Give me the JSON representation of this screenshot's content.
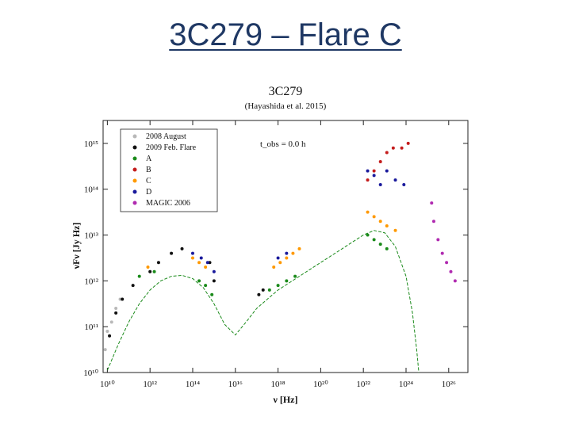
{
  "slide": {
    "title": "3C279 – Flare C"
  },
  "chart_data": {
    "type": "scatter",
    "title": "3C279",
    "subtitle": "(Hayashida et al. 2015)",
    "xlabel": "ν [Hz]",
    "ylabel": "νFν [Jy Hz]",
    "xlim": [
      9.8,
      26.9
    ],
    "ylim": [
      10,
      15.5
    ],
    "annotation": "t_obs = 0.0 h",
    "x_ticks": [
      {
        "value": 10,
        "label": "10¹⁰"
      },
      {
        "value": 12,
        "label": "10¹²"
      },
      {
        "value": 14,
        "label": "10¹⁴"
      },
      {
        "value": 16,
        "label": "10¹⁶"
      },
      {
        "value": 18,
        "label": "10¹⁸"
      },
      {
        "value": 20,
        "label": "10²⁰"
      },
      {
        "value": 22,
        "label": "10²²"
      },
      {
        "value": 24,
        "label": "10²⁴"
      },
      {
        "value": 26,
        "label": "10²⁶"
      }
    ],
    "y_ticks": [
      {
        "value": 10,
        "label": "10¹⁰"
      },
      {
        "value": 11,
        "label": "10¹¹"
      },
      {
        "value": 12,
        "label": "10¹²"
      },
      {
        "value": 13,
        "label": "10¹³"
      },
      {
        "value": 14,
        "label": "10¹⁴"
      },
      {
        "value": 15,
        "label": "10¹⁵"
      }
    ],
    "series": [
      {
        "name": "2008 August",
        "color": "#b8b8b8",
        "marker": "dot",
        "points": [
          [
            9.9,
            10.5
          ],
          [
            10.0,
            10.9
          ],
          [
            10.2,
            11.1
          ],
          [
            10.4,
            11.4
          ],
          [
            10.6,
            11.6
          ]
        ]
      },
      {
        "name": "2009 Feb. Flare",
        "color": "#111111",
        "marker": "dot",
        "points": [
          [
            10.1,
            10.8
          ],
          [
            10.4,
            11.3
          ],
          [
            10.7,
            11.6
          ],
          [
            11.2,
            11.9
          ],
          [
            12.0,
            12.2
          ],
          [
            12.4,
            12.4
          ],
          [
            13.0,
            12.6
          ],
          [
            13.5,
            12.7
          ],
          [
            14.8,
            12.4
          ],
          [
            15.0,
            12.0
          ],
          [
            17.1,
            11.7
          ],
          [
            17.3,
            11.8
          ]
        ]
      },
      {
        "name": "A",
        "color": "#1a8a1a",
        "marker": "dot",
        "points": [
          [
            11.5,
            12.1
          ],
          [
            12.2,
            12.2
          ],
          [
            14.3,
            12.0
          ],
          [
            14.6,
            11.9
          ],
          [
            14.9,
            11.7
          ],
          [
            17.6,
            11.8
          ],
          [
            18.0,
            11.9
          ],
          [
            18.4,
            12.0
          ],
          [
            18.8,
            12.1
          ],
          [
            22.2,
            13.0
          ],
          [
            22.5,
            12.9
          ],
          [
            22.8,
            12.8
          ],
          [
            23.1,
            12.7
          ]
        ]
      },
      {
        "name": "B",
        "color": "#c41c1c",
        "marker": "dot",
        "points": [
          [
            22.2,
            14.2
          ],
          [
            22.5,
            14.4
          ],
          [
            22.8,
            14.6
          ],
          [
            23.1,
            14.8
          ],
          [
            23.4,
            14.9
          ],
          [
            23.8,
            14.9
          ],
          [
            24.1,
            15.0
          ]
        ]
      },
      {
        "name": "C",
        "color": "#ff9900",
        "marker": "dot",
        "points": [
          [
            11.9,
            12.3
          ],
          [
            14.0,
            12.5
          ],
          [
            14.3,
            12.4
          ],
          [
            14.6,
            12.3
          ],
          [
            17.8,
            12.3
          ],
          [
            18.1,
            12.4
          ],
          [
            18.4,
            12.5
          ],
          [
            18.7,
            12.6
          ],
          [
            19.0,
            12.7
          ],
          [
            22.2,
            13.5
          ],
          [
            22.5,
            13.4
          ],
          [
            22.8,
            13.3
          ],
          [
            23.1,
            13.2
          ],
          [
            23.5,
            13.1
          ]
        ]
      },
      {
        "name": "D",
        "color": "#1a1a9c",
        "marker": "dot",
        "points": [
          [
            14.0,
            12.6
          ],
          [
            14.4,
            12.5
          ],
          [
            14.7,
            12.4
          ],
          [
            15.0,
            12.2
          ],
          [
            18.0,
            12.5
          ],
          [
            18.4,
            12.6
          ],
          [
            22.2,
            14.4
          ],
          [
            22.5,
            14.3
          ],
          [
            22.8,
            14.1
          ],
          [
            23.1,
            14.4
          ],
          [
            23.5,
            14.2
          ],
          [
            23.9,
            14.1
          ]
        ]
      },
      {
        "name": "MAGIC 2006",
        "color": "#b02ab0",
        "marker": "dot",
        "points": [
          [
            25.3,
            13.3
          ],
          [
            25.5,
            12.9
          ],
          [
            25.7,
            12.6
          ],
          [
            25.9,
            12.4
          ],
          [
            26.1,
            12.2
          ],
          [
            26.3,
            12.0
          ],
          [
            25.2,
            13.7
          ]
        ]
      }
    ],
    "model_curve": {
      "color": "#1a8a1a",
      "points": [
        [
          10.0,
          10.05
        ],
        [
          10.5,
          10.6
        ],
        [
          11.0,
          11.1
        ],
        [
          11.5,
          11.5
        ],
        [
          12.0,
          11.8
        ],
        [
          12.5,
          12.0
        ],
        [
          13.0,
          12.1
        ],
        [
          13.5,
          12.12
        ],
        [
          14.0,
          12.05
        ],
        [
          14.5,
          11.85
        ],
        [
          15.0,
          11.5
        ],
        [
          15.5,
          11.05
        ],
        [
          16.0,
          10.82
        ],
        [
          16.5,
          11.1
        ],
        [
          17.0,
          11.4
        ],
        [
          17.5,
          11.6
        ],
        [
          18.0,
          11.8
        ],
        [
          18.5,
          11.95
        ],
        [
          19.0,
          12.1
        ],
        [
          19.5,
          12.25
        ],
        [
          20.0,
          12.4
        ],
        [
          20.5,
          12.55
        ],
        [
          21.0,
          12.7
        ],
        [
          21.5,
          12.85
        ],
        [
          22.0,
          13.0
        ],
        [
          22.5,
          13.1
        ],
        [
          23.0,
          13.05
        ],
        [
          23.5,
          12.75
        ],
        [
          24.0,
          12.1
        ],
        [
          24.3,
          11.3
        ],
        [
          24.5,
          10.5
        ],
        [
          24.6,
          10.0
        ]
      ]
    }
  }
}
